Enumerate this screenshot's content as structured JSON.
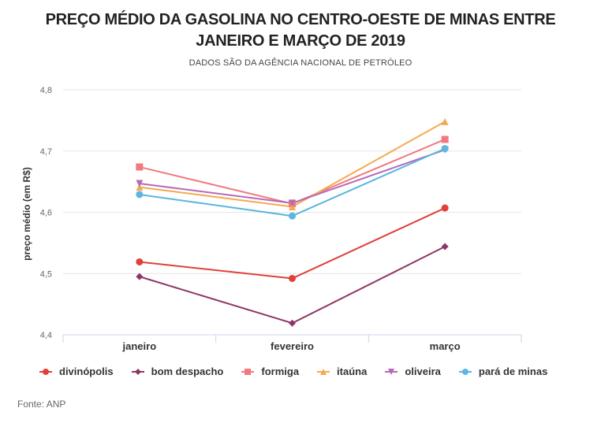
{
  "title_line1": "PREÇO MÉDIO DA GASOLINA NO CENTRO-OESTE DE MINAS ENTRE",
  "title_line2": "JANEIRO E MARÇO DE 2019",
  "subtitle": "DADOS SÃO DA AGÊNCIA NACIONAL DE PETRÓLEO",
  "source": "Fonte: ANP",
  "chart_data": {
    "type": "line",
    "ylabel": "preço médio (em R$)",
    "ylim": [
      4.4,
      4.8
    ],
    "yticks": [
      "4,4",
      "4,5",
      "4,6",
      "4,7",
      "4,8"
    ],
    "categories": [
      "janeiro",
      "fevereiro",
      "março"
    ],
    "grid": true,
    "legend_position": "bottom",
    "series": [
      {
        "name": "divinópolis",
        "color": "#e0413a",
        "marker": "circle",
        "values": [
          4.519,
          4.492,
          4.607
        ]
      },
      {
        "name": "bom despacho",
        "color": "#8e3566",
        "marker": "diamond",
        "values": [
          4.495,
          4.419,
          4.544
        ]
      },
      {
        "name": "formiga",
        "color": "#f07a80",
        "marker": "square",
        "values": [
          4.674,
          4.614,
          4.719
        ]
      },
      {
        "name": "itaúna",
        "color": "#f5a94e",
        "marker": "triangle-up",
        "values": [
          4.641,
          4.609,
          4.748
        ]
      },
      {
        "name": "oliveira",
        "color": "#b56ab8",
        "marker": "triangle-down",
        "values": [
          4.647,
          4.615,
          4.702
        ]
      },
      {
        "name": "pará de minas",
        "color": "#5bb6e0",
        "marker": "circle",
        "values": [
          4.629,
          4.594,
          4.704
        ]
      }
    ]
  }
}
